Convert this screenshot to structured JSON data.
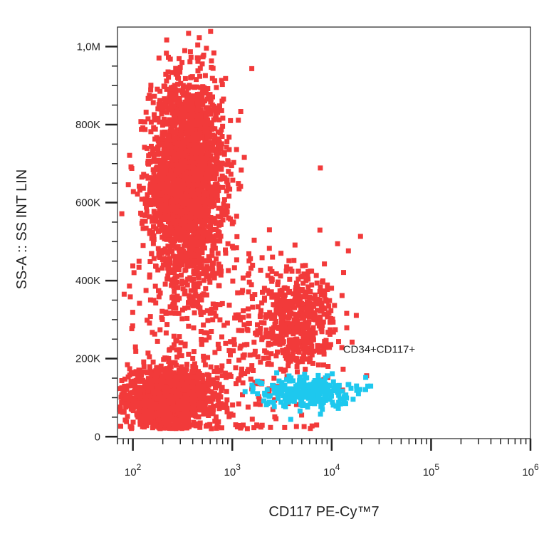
{
  "chart_data": {
    "type": "scatter",
    "title": "",
    "xlabel": "CD117  PE-Cy™7",
    "ylabel": "SS-A :: SS INT LIN",
    "x_scale": "log",
    "xlim": [
      70,
      1000000
    ],
    "ylim": [
      -5000,
      1050000
    ],
    "x_ticks": [
      {
        "value": 100,
        "base": "10",
        "exp": "2"
      },
      {
        "value": 1000,
        "base": "10",
        "exp": "3"
      },
      {
        "value": 10000,
        "base": "10",
        "exp": "4"
      },
      {
        "value": 100000,
        "base": "10",
        "exp": "5"
      },
      {
        "value": 1000000,
        "base": "10",
        "exp": "6"
      }
    ],
    "y_ticks": [
      {
        "value": 0,
        "label": "0"
      },
      {
        "value": 200000,
        "label": "200K"
      },
      {
        "value": 400000,
        "label": "400K"
      },
      {
        "value": 600000,
        "label": "600K"
      },
      {
        "value": 800000,
        "label": "800K"
      },
      {
        "value": 1000000,
        "label": "1,0M"
      }
    ],
    "grid": false,
    "series": [
      {
        "color": "#f23a3a",
        "populations": [
          {
            "x_center": 350,
            "x_spread_decades": 0.18,
            "y_center": 660000,
            "y_spread": 130000,
            "count": 2600
          },
          {
            "x_center": 230,
            "x_spread_decades": 0.22,
            "y_center": 100000,
            "y_spread": 35000,
            "count": 1500
          },
          {
            "x_center": 4500,
            "x_spread_decades": 0.18,
            "y_center": 300000,
            "y_spread": 65000,
            "count": 500
          },
          {
            "x_center": 900,
            "x_spread_decades": 0.55,
            "y_center": 250000,
            "y_spread": 170000,
            "count": 420
          }
        ]
      },
      {
        "name": "CD34+CD117+",
        "color": "#1ec8ee",
        "populations": [
          {
            "x_center": 5500,
            "x_spread_decades": 0.22,
            "y_center": 115000,
            "y_spread": 20000,
            "count": 260
          }
        ]
      }
    ],
    "annotations": [
      {
        "text": "CD34+CD117+",
        "x": 30000,
        "y": 215000
      }
    ]
  }
}
